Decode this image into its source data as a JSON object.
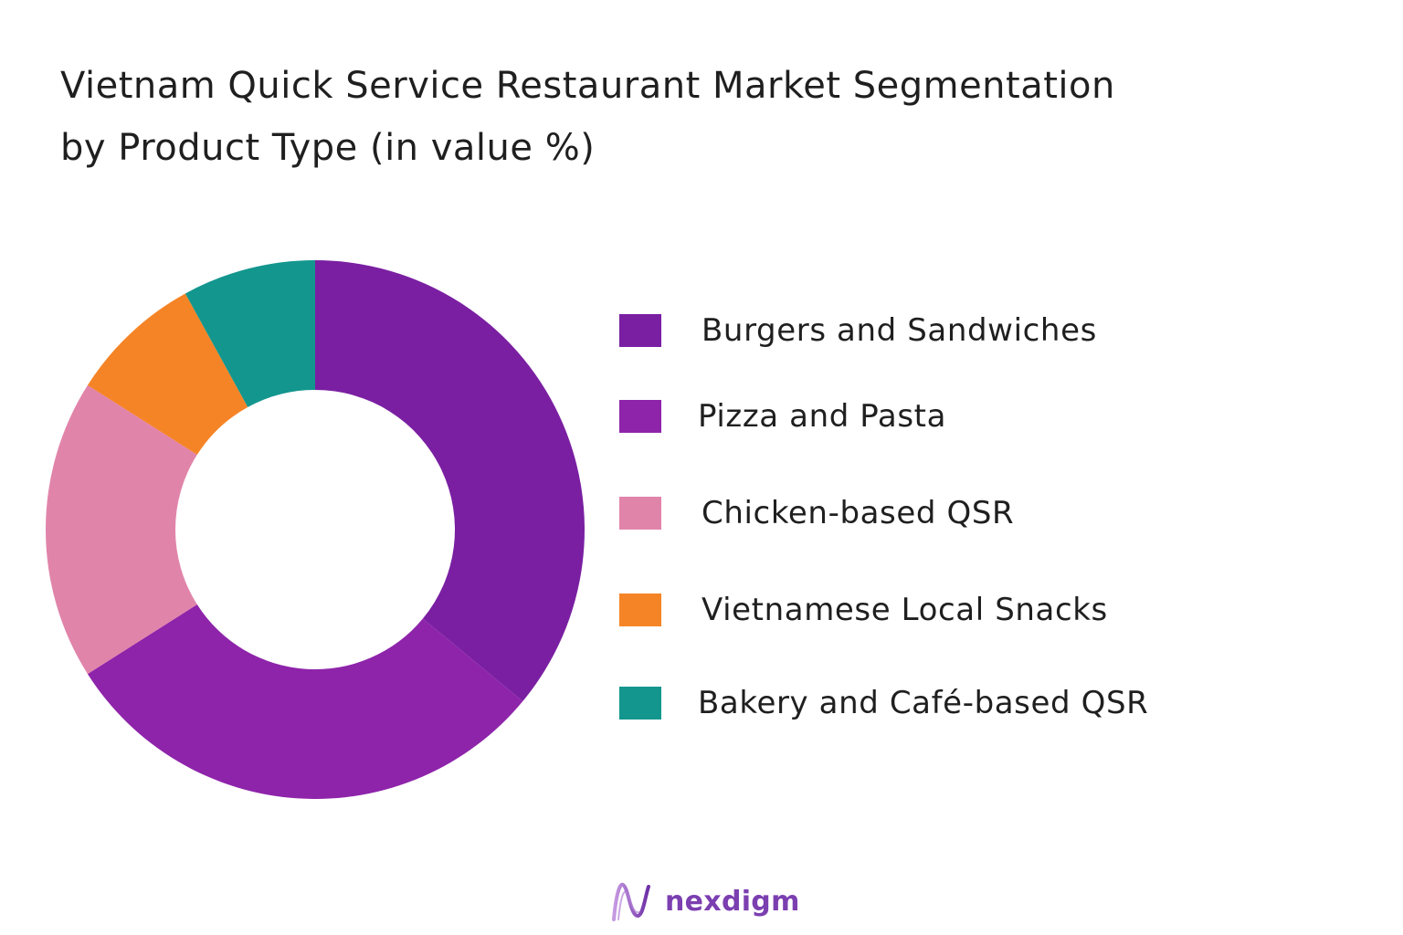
{
  "chart_data": {
    "type": "pie",
    "style": "donut",
    "title_lines": [
      "Vietnam Quick Service Restaurant Market Segmentation",
      "by Product Type  (in value %)"
    ],
    "categories": [
      "Burgers and Sandwiches",
      "Pizza and Pasta",
      "Chicken-based QSR",
      "Vietnamese Local Snacks",
      "Bakery and Café-based QSR"
    ],
    "values": [
      36,
      30,
      18,
      8,
      8
    ],
    "colors": [
      "#7a1fa2",
      "#8e24aa",
      "#e184aa",
      "#f58426",
      "#13968e"
    ],
    "legend_position": "right"
  },
  "brand": {
    "logo_name": "nexdigm",
    "logo_color": "#7b3fb0"
  }
}
